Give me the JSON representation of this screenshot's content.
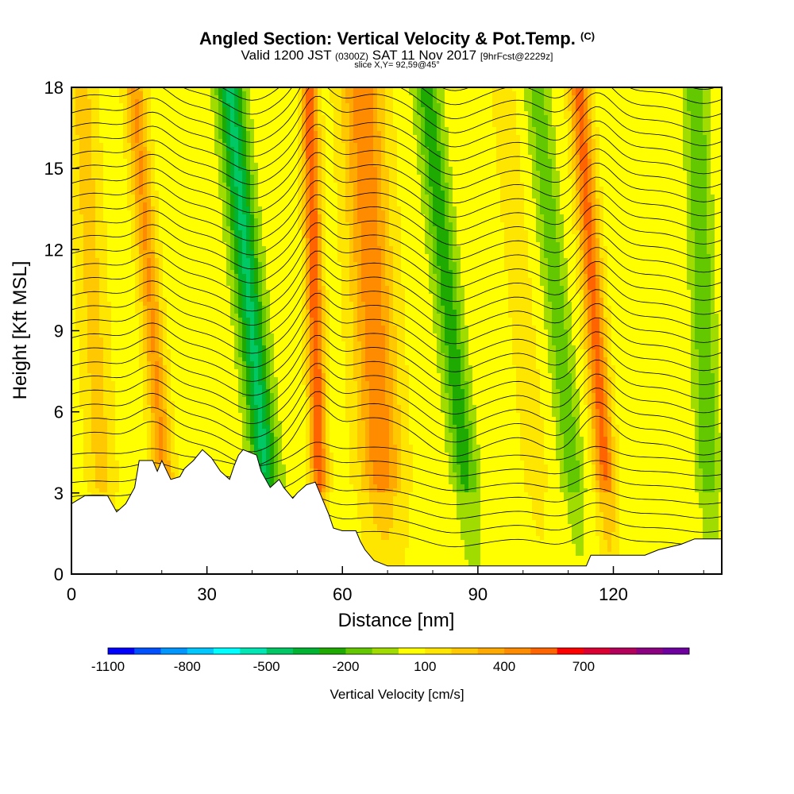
{
  "header": {
    "title": "Angled Section: Vertical Velocity & Pot.Temp.",
    "title_mark": "(C)",
    "valid_prefix": "Valid 1200 JST",
    "valid_utc": "(0300Z)",
    "valid_date": "SAT 11 Nov 2017",
    "forecast": "[9hrFcst@2229z]",
    "slice": "slice X,Y= 92,59@45°"
  },
  "chart_data": {
    "type": "heatmap",
    "xlabel": "Distance [nm]",
    "ylabel": "Height [Kft MSL]",
    "xlim": [
      0,
      144
    ],
    "ylim": [
      0,
      18
    ],
    "xticks": [
      0,
      30,
      60,
      90,
      120
    ],
    "yticks": [
      0,
      3,
      6,
      9,
      12,
      15,
      18
    ],
    "updraft_bands": [
      {
        "x": 18,
        "peak": 350,
        "tilt": 0.45,
        "sigma": 2.2
      },
      {
        "x": 54,
        "peak": 520,
        "tilt": 0.15,
        "sigma": 1.8
      },
      {
        "x": 67,
        "peak": 420,
        "tilt": 0.3,
        "sigma": 4.5
      },
      {
        "x": 116,
        "peak": 480,
        "tilt": 0.4,
        "sigma": 2.2
      },
      {
        "x": 5,
        "peak": 180,
        "tilt": 0.3,
        "sigma": 3.0
      },
      {
        "x": 100,
        "peak": 120,
        "tilt": 0.5,
        "sigma": 2.5
      }
    ],
    "downdraft_bands": [
      {
        "x": 40,
        "peak": -480,
        "tilt": 0.55,
        "sigma": 3.0
      },
      {
        "x": 84,
        "peak": -320,
        "tilt": 0.6,
        "sigma": 2.8
      },
      {
        "x": 108,
        "peak": -220,
        "tilt": 0.55,
        "sigma": 2.6
      },
      {
        "x": 140,
        "peak": -250,
        "tilt": 0.2,
        "sigma": 2.5
      }
    ],
    "terrain_kft": [
      [
        0,
        2.6
      ],
      [
        2,
        2.8
      ],
      [
        3,
        2.9
      ],
      [
        8,
        2.9
      ],
      [
        10,
        2.3
      ],
      [
        12,
        2.6
      ],
      [
        14,
        3.2
      ],
      [
        15,
        4.2
      ],
      [
        18,
        4.2
      ],
      [
        19,
        3.8
      ],
      [
        20,
        4.2
      ],
      [
        22,
        3.5
      ],
      [
        24,
        3.6
      ],
      [
        25,
        3.9
      ],
      [
        27,
        4.2
      ],
      [
        29,
        4.6
      ],
      [
        31,
        4.3
      ],
      [
        33,
        3.8
      ],
      [
        35,
        3.5
      ],
      [
        36,
        4.0
      ],
      [
        37,
        4.4
      ],
      [
        38,
        4.6
      ],
      [
        41,
        4.4
      ],
      [
        42,
        3.8
      ],
      [
        44,
        3.2
      ],
      [
        46,
        3.5
      ],
      [
        47,
        3.2
      ],
      [
        49,
        2.8
      ],
      [
        50,
        3.0
      ],
      [
        52,
        3.3
      ],
      [
        54,
        3.4
      ],
      [
        55,
        3.0
      ],
      [
        57,
        2.2
      ],
      [
        58,
        1.7
      ],
      [
        60,
        1.6
      ],
      [
        63,
        1.6
      ],
      [
        64,
        1.2
      ],
      [
        65,
        0.9
      ],
      [
        67,
        0.5
      ],
      [
        70,
        0.3
      ],
      [
        85,
        0.3
      ],
      [
        110,
        0.3
      ],
      [
        114,
        0.3
      ],
      [
        115,
        0.7
      ],
      [
        127,
        0.7
      ],
      [
        130,
        0.9
      ],
      [
        135,
        1.1
      ],
      [
        138,
        1.3
      ],
      [
        144,
        1.3
      ]
    ],
    "colorbar": {
      "title": "Vertical Velocity [cm/s]",
      "labels": [
        "-1100",
        "-800",
        "-500",
        "-200",
        "100",
        "400",
        "700"
      ],
      "colors": [
        "#0000ff",
        "#0050ff",
        "#0096ff",
        "#00c8ff",
        "#00ffff",
        "#00e6b4",
        "#00c864",
        "#00b432",
        "#1eaa00",
        "#64c800",
        "#a0dc00",
        "#ffff00",
        "#ffe600",
        "#ffc800",
        "#ffaa00",
        "#ff8c00",
        "#ff6400",
        "#ff0000",
        "#dc0032",
        "#b4005a",
        "#8c0082",
        "#6e00a0"
      ]
    },
    "contour_style": "black thin lines (potential temperature isentropes)"
  }
}
